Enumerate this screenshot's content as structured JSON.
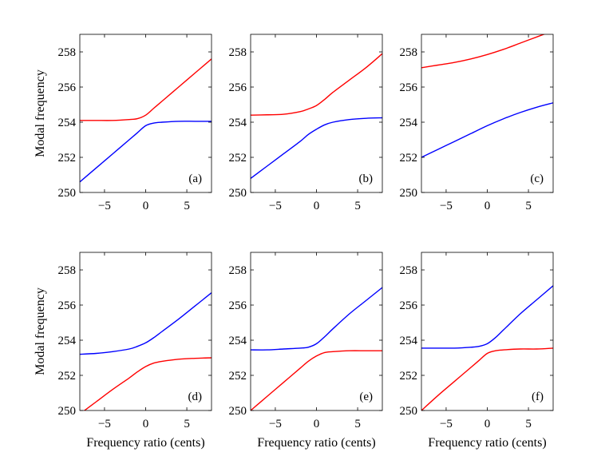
{
  "figure": {
    "ylabel": "Modal frequency",
    "xlabel": "Frequency ratio (cents)"
  },
  "chart_data": [
    {
      "type": "line",
      "panel_label": "(a)",
      "xlim": [
        -8,
        8
      ],
      "ylim": [
        250,
        259
      ],
      "xticks": [
        -5,
        0,
        5
      ],
      "yticks": [
        250,
        252,
        254,
        256,
        258
      ],
      "ylabel": "Modal frequency",
      "xlabel": "",
      "series": [
        {
          "color": "#ff0000",
          "x": [
            -8,
            -6,
            -4,
            -2,
            -1,
            0,
            1,
            2,
            4,
            6,
            8
          ],
          "values": [
            254.1,
            254.1,
            254.1,
            254.15,
            254.2,
            254.4,
            254.8,
            255.2,
            256.0,
            256.8,
            257.6
          ]
        },
        {
          "color": "#0000ff",
          "x": [
            -8,
            -6,
            -4,
            -2,
            -1,
            0,
            1,
            2,
            4,
            6,
            8
          ],
          "values": [
            250.6,
            251.4,
            252.2,
            253.0,
            253.4,
            253.8,
            253.95,
            254.0,
            254.05,
            254.05,
            254.05
          ]
        }
      ]
    },
    {
      "type": "line",
      "panel_label": "(b)",
      "xlim": [
        -8,
        8
      ],
      "ylim": [
        250,
        259
      ],
      "xticks": [
        -5,
        0,
        5
      ],
      "yticks": [
        250,
        252,
        254,
        256,
        258
      ],
      "ylabel": "",
      "xlabel": "",
      "series": [
        {
          "color": "#ff0000",
          "x": [
            -8,
            -6,
            -4,
            -2,
            -1,
            0,
            1,
            2,
            4,
            6,
            8
          ],
          "values": [
            254.4,
            254.42,
            254.45,
            254.6,
            254.75,
            254.95,
            255.3,
            255.7,
            256.4,
            257.1,
            257.9
          ]
        },
        {
          "color": "#0000ff",
          "x": [
            -8,
            -6,
            -4,
            -2,
            -1,
            0,
            1,
            2,
            4,
            6,
            8
          ],
          "values": [
            250.8,
            251.5,
            252.2,
            252.9,
            253.3,
            253.6,
            253.85,
            254.0,
            254.15,
            254.22,
            254.25
          ]
        }
      ]
    },
    {
      "type": "line",
      "panel_label": "(c)",
      "xlim": [
        -8,
        8
      ],
      "ylim": [
        250,
        259
      ],
      "xticks": [
        -5,
        0,
        5
      ],
      "yticks": [
        250,
        252,
        254,
        256,
        258
      ],
      "ylabel": "",
      "xlabel": "",
      "series": [
        {
          "color": "#ff0000",
          "x": [
            -8,
            -6,
            -4,
            -2,
            0,
            2,
            4,
            6,
            8
          ],
          "values": [
            257.1,
            257.25,
            257.4,
            257.6,
            257.85,
            258.15,
            258.5,
            258.85,
            259.2
          ]
        },
        {
          "color": "#0000ff",
          "x": [
            -8,
            -6,
            -4,
            -2,
            0,
            2,
            4,
            6,
            8
          ],
          "values": [
            252.0,
            252.45,
            252.9,
            253.35,
            253.8,
            254.2,
            254.55,
            254.85,
            255.1
          ]
        }
      ]
    },
    {
      "type": "line",
      "panel_label": "(d)",
      "xlim": [
        -8,
        8
      ],
      "ylim": [
        250,
        259
      ],
      "xticks": [
        -5,
        0,
        5
      ],
      "yticks": [
        250,
        252,
        254,
        256,
        258
      ],
      "ylabel": "Modal frequency",
      "xlabel": "Frequency ratio (cents)",
      "series": [
        {
          "color": "#0000ff",
          "x": [
            -8,
            -6,
            -4,
            -2,
            -1,
            0,
            1,
            2,
            4,
            6,
            8
          ],
          "values": [
            253.2,
            253.25,
            253.35,
            253.5,
            253.65,
            253.85,
            254.15,
            254.5,
            255.2,
            255.95,
            256.7
          ]
        },
        {
          "color": "#ff0000",
          "x": [
            -8,
            -6,
            -4,
            -2,
            -1,
            0,
            1,
            2,
            4,
            6,
            8
          ],
          "values": [
            249.8,
            250.5,
            251.2,
            251.85,
            252.2,
            252.5,
            252.7,
            252.8,
            252.92,
            252.97,
            253.0
          ]
        }
      ]
    },
    {
      "type": "line",
      "panel_label": "(e)",
      "xlim": [
        -8,
        8
      ],
      "ylim": [
        250,
        259
      ],
      "xticks": [
        -5,
        0,
        5
      ],
      "yticks": [
        250,
        252,
        254,
        256,
        258
      ],
      "ylabel": "",
      "xlabel": "Frequency ratio (cents)",
      "series": [
        {
          "color": "#0000ff",
          "x": [
            -8,
            -6,
            -4,
            -2,
            -1,
            0,
            1,
            2,
            4,
            6,
            8
          ],
          "values": [
            253.45,
            253.45,
            253.5,
            253.55,
            253.6,
            253.8,
            254.2,
            254.65,
            255.5,
            256.25,
            257.0
          ]
        },
        {
          "color": "#ff0000",
          "x": [
            -8,
            -6,
            -4,
            -2,
            -1,
            0,
            1,
            2,
            4,
            6,
            8
          ],
          "values": [
            250.0,
            250.8,
            251.6,
            252.4,
            252.8,
            253.1,
            253.3,
            253.35,
            253.4,
            253.4,
            253.4
          ]
        }
      ]
    },
    {
      "type": "line",
      "panel_label": "(f)",
      "xlim": [
        -8,
        8
      ],
      "ylim": [
        250,
        259
      ],
      "xticks": [
        -5,
        0,
        5
      ],
      "yticks": [
        250,
        252,
        254,
        256,
        258
      ],
      "ylabel": "",
      "xlabel": "Frequency ratio (cents)",
      "series": [
        {
          "color": "#0000ff",
          "x": [
            -8,
            -6,
            -4,
            -2,
            -1,
            0,
            1,
            2,
            4,
            6,
            8
          ],
          "values": [
            253.55,
            253.55,
            253.55,
            253.6,
            253.65,
            253.8,
            254.15,
            254.6,
            255.5,
            256.3,
            257.1
          ]
        },
        {
          "color": "#ff0000",
          "x": [
            -8,
            -6,
            -4,
            -2,
            -1,
            0,
            1,
            2,
            4,
            6,
            8
          ],
          "values": [
            250.0,
            250.85,
            251.65,
            252.45,
            252.85,
            253.25,
            253.4,
            253.45,
            253.5,
            253.5,
            253.55
          ]
        }
      ]
    }
  ]
}
